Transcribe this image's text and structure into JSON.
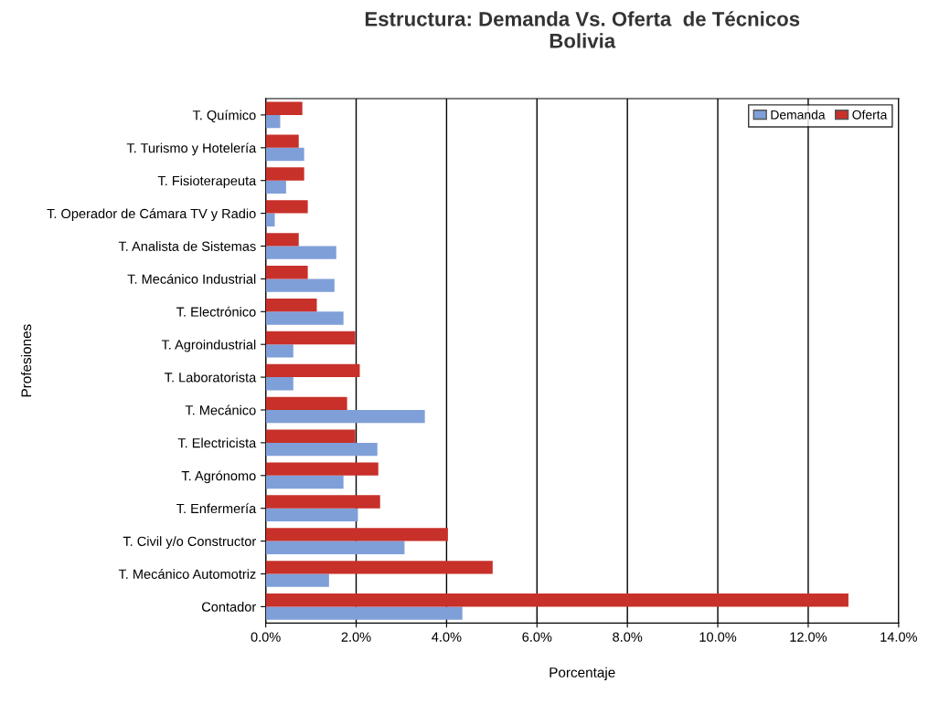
{
  "chart_data": {
    "type": "bar",
    "orientation": "horizontal",
    "title": "Estructura: Demanda Vs. Oferta  de Técnicos\nBolivia",
    "xlabel": "Porcentaje",
    "ylabel": "Profesiones",
    "categories": [
      "T. Químico",
      "T. Turismo y Hotelería",
      "T. Fisioterapeuta",
      "T. Operador de Cámara TV y Radio",
      "T. Analista de Sistemas",
      "T. Mecánico Industrial",
      "T. Electrónico",
      "T. Agroindustrial",
      "T. Laboratorista",
      "T. Mecánico",
      "T. Electricista",
      "T. Agrónomo",
      "T. Enfermería",
      "T. Civil y/o Constructor",
      "T. Mecánico Automotriz",
      "Contador"
    ],
    "series": [
      {
        "name": "Demanda",
        "color": "#7f9fd8",
        "values": [
          0.32,
          0.85,
          0.45,
          0.2,
          1.56,
          1.52,
          1.72,
          0.61,
          0.61,
          3.52,
          2.47,
          1.72,
          2.04,
          3.07,
          1.4,
          4.35
        ]
      },
      {
        "name": "Oferta",
        "color": "#c8302a",
        "values": [
          0.81,
          0.73,
          0.85,
          0.93,
          0.73,
          0.93,
          1.13,
          1.98,
          2.08,
          1.8,
          1.98,
          2.49,
          2.53,
          4.03,
          5.02,
          12.89
        ]
      }
    ],
    "xlim": [
      0,
      14
    ],
    "xticks": [
      {
        "value": 0,
        "label": "0.0%"
      },
      {
        "value": 2,
        "label": "2.0%"
      },
      {
        "value": 4,
        "label": "4.0%"
      },
      {
        "value": 6,
        "label": "6.0%"
      },
      {
        "value": 8,
        "label": "8.0%"
      },
      {
        "value": 10,
        "label": "10.0%"
      },
      {
        "value": 12,
        "label": "12.0%"
      },
      {
        "value": 14,
        "label": "14.0%"
      }
    ],
    "grid": "x",
    "legend": "top right"
  }
}
